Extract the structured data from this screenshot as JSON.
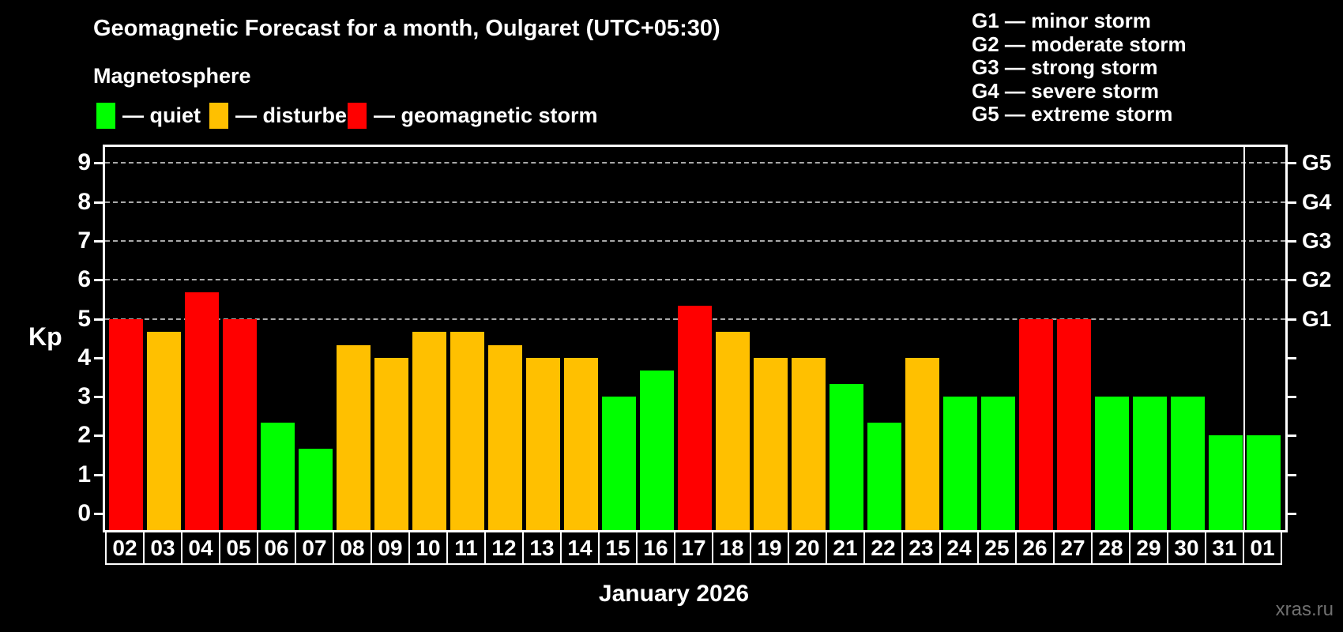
{
  "chart_data": {
    "type": "bar",
    "title": "Geomagnetic Forecast for a month, Oulgaret (UTC+05:30)",
    "xlabel": "January 2026",
    "ylabel": "Kp",
    "ylim": [
      0,
      9.4
    ],
    "y_ticks": [
      "0",
      "1",
      "2",
      "3",
      "4",
      "5",
      "6",
      "7",
      "8",
      "9"
    ],
    "grid": "horizontal dashed lines at Kp 5 through 9 only",
    "legend_position": "top-left",
    "categories": [
      "02",
      "03",
      "04",
      "05",
      "06",
      "07",
      "08",
      "09",
      "10",
      "11",
      "12",
      "13",
      "14",
      "15",
      "16",
      "17",
      "18",
      "19",
      "20",
      "21",
      "22",
      "23",
      "24",
      "25",
      "26",
      "27",
      "28",
      "29",
      "30",
      "31",
      "01"
    ],
    "values": [
      5,
      4.67,
      5.67,
      5,
      2.33,
      1.67,
      4.33,
      4,
      4.67,
      4.67,
      4.33,
      4,
      4,
      3,
      3.67,
      5.33,
      4.67,
      4,
      4,
      3.33,
      2.33,
      4,
      3,
      3,
      5,
      5,
      3,
      3,
      3,
      2,
      2
    ],
    "statuses": [
      "storm",
      "disturbed",
      "storm",
      "storm",
      "quiet",
      "quiet",
      "disturbed",
      "disturbed",
      "disturbed",
      "disturbed",
      "disturbed",
      "disturbed",
      "disturbed",
      "quiet",
      "quiet",
      "storm",
      "disturbed",
      "disturbed",
      "disturbed",
      "quiet",
      "quiet",
      "disturbed",
      "quiet",
      "quiet",
      "storm",
      "storm",
      "quiet",
      "quiet",
      "quiet",
      "quiet",
      "quiet"
    ],
    "month_separator_after_index": 29,
    "right_axis": {
      "labels": [
        "G1",
        "G2",
        "G3",
        "G4",
        "G5"
      ],
      "kp_levels": [
        5,
        6,
        7,
        8,
        9
      ]
    }
  },
  "legend": {
    "title": "Magnetosphere",
    "items": [
      {
        "key": "quiet",
        "label": "— quiet"
      },
      {
        "key": "disturbed",
        "label": "— disturbed"
      },
      {
        "key": "storm",
        "label": "— geomagnetic storm"
      }
    ]
  },
  "g_legend": [
    "G1 — minor storm",
    "G2 — moderate storm",
    "G3 — strong storm",
    "G4 — severe storm",
    "G5 — extreme storm"
  ],
  "watermark": "xras.ru",
  "colors": {
    "quiet": "#00ff00",
    "disturbed": "#ffc000",
    "storm": "#ff0000",
    "grid": "#a9a9a9",
    "axis": "#ffffff",
    "text": "#ffffff",
    "watermark": "#707070",
    "background": "#000000"
  }
}
